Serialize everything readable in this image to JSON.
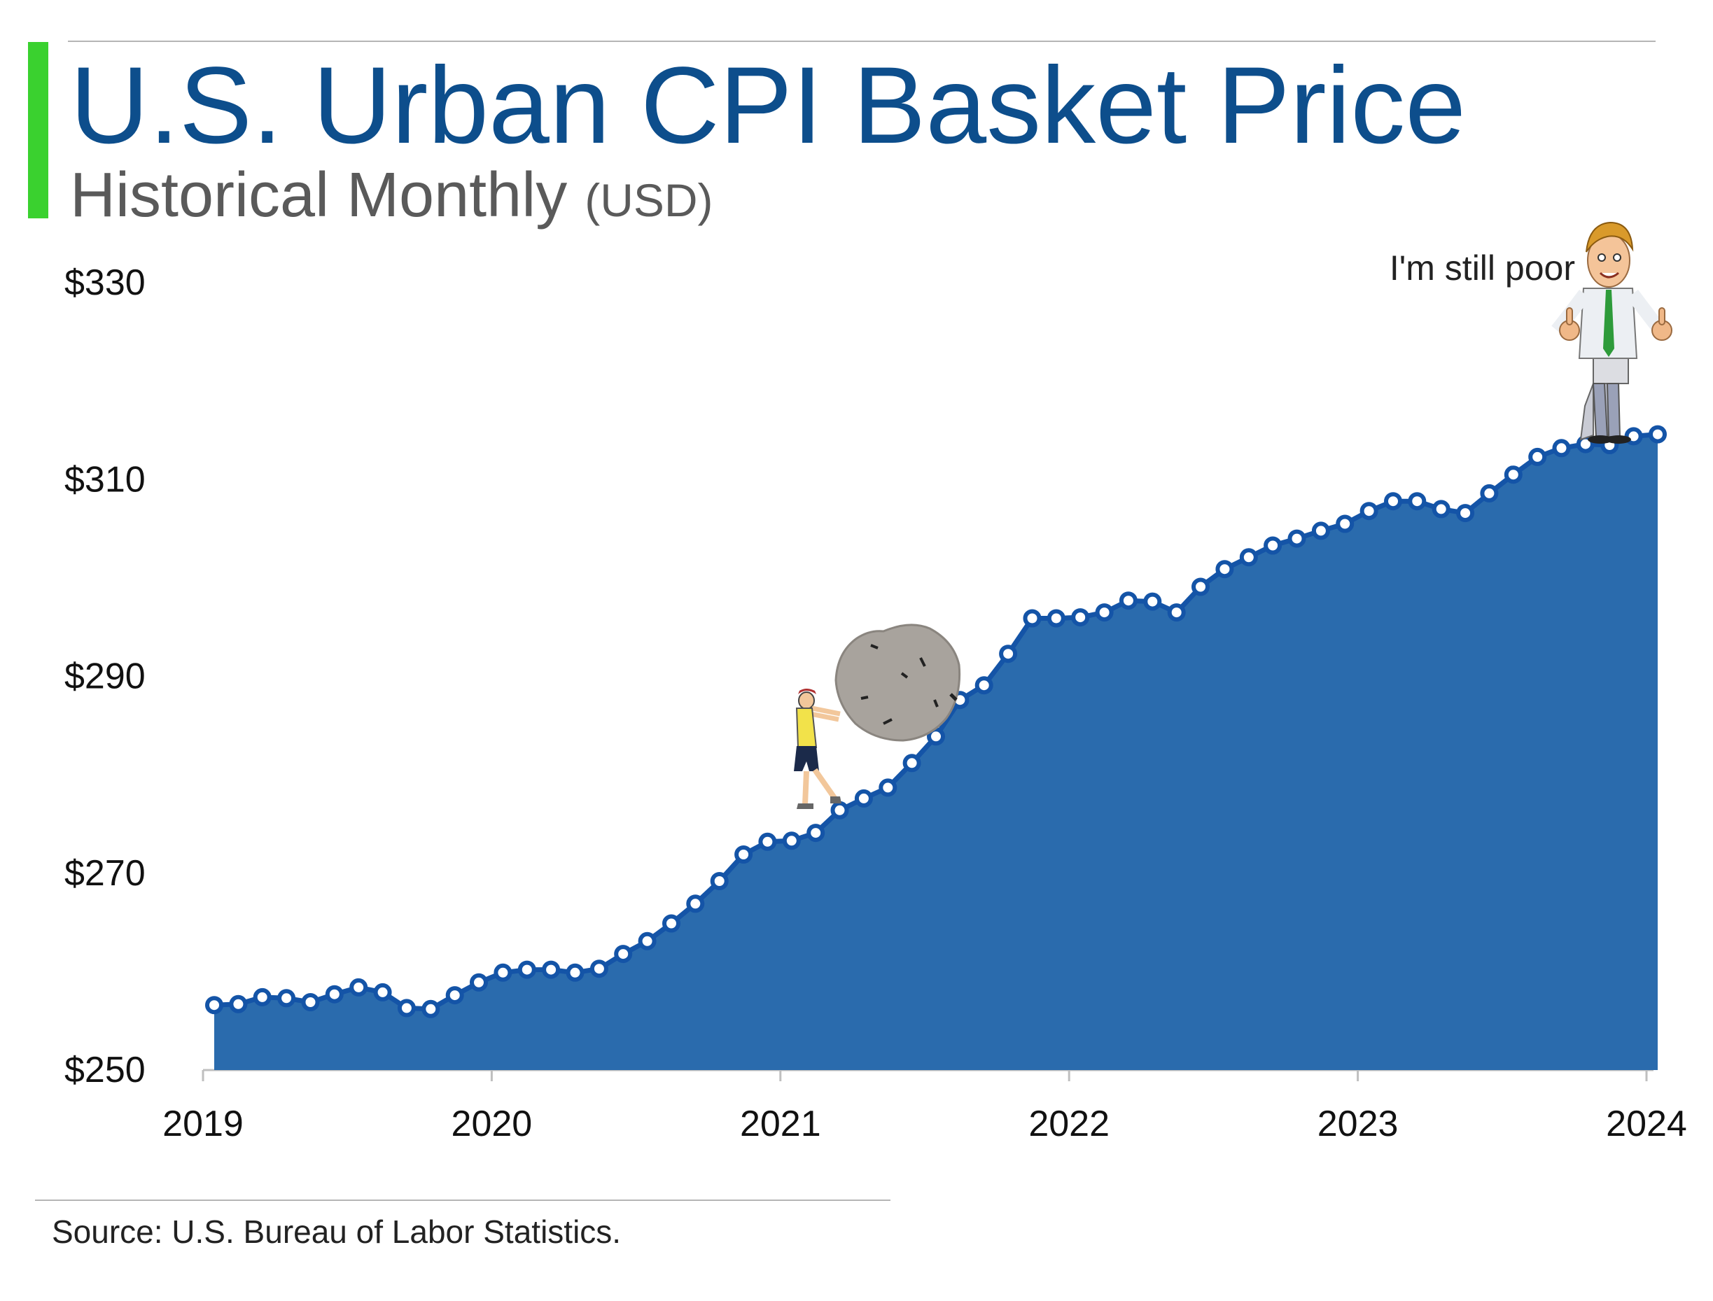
{
  "header": {
    "title": "U.S. Urban CPI Basket Price",
    "subtitle": "Historical Monthly",
    "subtitle_unit": "(USD)"
  },
  "colors": {
    "accent_bar": "#3ad12f",
    "title": "#0d4e8c",
    "area_fill": "#2a6bad",
    "line": "#1454a7",
    "marker_fill": "#ffffff"
  },
  "annotation": {
    "text": "I'm still poor"
  },
  "illustrations": [
    "man-pushing-boulder",
    "thumbs-up-man"
  ],
  "chart_data": {
    "type": "area",
    "title": "U.S. Urban CPI Basket Price",
    "subtitle": "Historical Monthly (USD)",
    "xlabel": "",
    "ylabel": "",
    "xlim": [
      2019,
      2024
    ],
    "ylim": [
      250,
      330
    ],
    "x_ticks": [
      2019,
      2020,
      2021,
      2022,
      2023,
      2024
    ],
    "x_tick_labels": [
      "2019",
      "2020",
      "2021",
      "2022",
      "2023",
      "2024"
    ],
    "y_ticks": [
      250,
      270,
      290,
      310,
      330
    ],
    "y_tick_labels": [
      "$250",
      "$270",
      "$290",
      "$310",
      "$330"
    ],
    "grid": false,
    "legend": "none",
    "series": [
      {
        "x": [
          "2019-01",
          "2019-02",
          "2019-03",
          "2019-04",
          "2019-05",
          "2019-06",
          "2019-07",
          "2019-08",
          "2019-09",
          "2019-10",
          "2019-11",
          "2019-12",
          "2020-01",
          "2020-02",
          "2020-03",
          "2020-04",
          "2020-05",
          "2020-06",
          "2020-07",
          "2020-08",
          "2020-09",
          "2020-10",
          "2020-11",
          "2020-12",
          "2021-01",
          "2021-02",
          "2021-03",
          "2021-04",
          "2021-05",
          "2021-06",
          "2021-07",
          "2021-08",
          "2021-09",
          "2021-10",
          "2021-11",
          "2021-12",
          "2022-01",
          "2022-02",
          "2022-03",
          "2022-04",
          "2022-05",
          "2022-06",
          "2022-07",
          "2022-08",
          "2022-09",
          "2022-10",
          "2022-11",
          "2022-12",
          "2023-01",
          "2023-02",
          "2023-03",
          "2023-04",
          "2023-05",
          "2023-06",
          "2023-07",
          "2023-08",
          "2023-09",
          "2023-10",
          "2023-11",
          "2023-12",
          "2024-01"
        ],
        "values": [
          256.6,
          256.7,
          257.4,
          257.3,
          256.9,
          257.7,
          258.4,
          257.9,
          256.3,
          256.2,
          257.6,
          258.9,
          259.9,
          260.2,
          260.2,
          259.9,
          260.3,
          261.8,
          263.1,
          264.9,
          266.9,
          269.2,
          271.9,
          273.2,
          273.3,
          274.1,
          276.4,
          277.6,
          278.7,
          281.2,
          283.9,
          287.6,
          289.1,
          292.3,
          295.9,
          295.9,
          296.0,
          296.5,
          297.7,
          297.6,
          296.5,
          299.1,
          300.9,
          302.1,
          303.3,
          304.0,
          304.8,
          305.5,
          306.8,
          307.8,
          307.8,
          307.0,
          306.6,
          308.6,
          310.5,
          312.3,
          313.2,
          313.6,
          313.5,
          314.4,
          314.6
        ]
      }
    ]
  },
  "source": "Source: U.S. Bureau of Labor Statistics."
}
